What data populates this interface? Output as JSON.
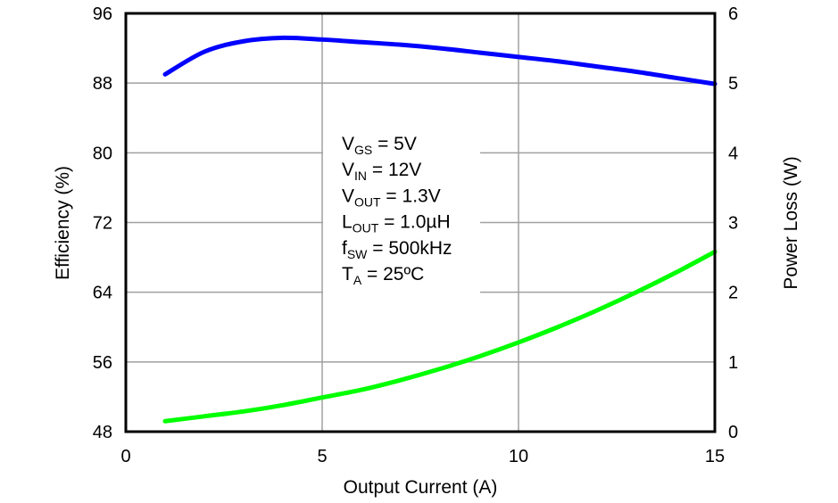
{
  "chart_data": {
    "type": "line",
    "xlabel": "Output Current (A)",
    "ylabel": "Efficiency (%)",
    "y2label": "Power Loss (W)",
    "xlim": [
      0,
      15
    ],
    "ylim": [
      48,
      96
    ],
    "y2lim": [
      0,
      6
    ],
    "xticks": [
      "0",
      "5",
      "10",
      "15"
    ],
    "yticks": [
      "48",
      "56",
      "64",
      "72",
      "80",
      "88",
      "96"
    ],
    "y2ticks": [
      "0",
      "1",
      "2",
      "3",
      "4",
      "5",
      "6"
    ],
    "grid": true,
    "colors": {
      "efficiency": "#0000ff",
      "power_loss": "#00ff00"
    },
    "series": [
      {
        "axis": "left",
        "color": "#0000ff",
        "x": [
          1,
          2,
          3,
          4,
          5,
          6,
          7,
          8,
          9,
          10,
          11,
          12,
          13,
          14,
          15
        ],
        "y": [
          89.0,
          91.6,
          92.8,
          93.2,
          93.0,
          92.7,
          92.4,
          92.0,
          91.5,
          91.0,
          90.5,
          89.9,
          89.3,
          88.6,
          87.9
        ]
      },
      {
        "axis": "right",
        "color": "#00ff00",
        "x": [
          1,
          2,
          3,
          4,
          5,
          6,
          7,
          8,
          9,
          10,
          11,
          12,
          13,
          14,
          15
        ],
        "y": [
          0.15,
          0.22,
          0.29,
          0.38,
          0.49,
          0.6,
          0.74,
          0.9,
          1.08,
          1.28,
          1.5,
          1.74,
          2.0,
          2.28,
          2.58
        ]
      }
    ],
    "annotation": [
      {
        "main": "V",
        "sub": "GS",
        "rest": " = 5V"
      },
      {
        "main": "V",
        "sub": "IN",
        "rest": " = 12V"
      },
      {
        "main": "V",
        "sub": "OUT",
        "rest": " = 1.3V"
      },
      {
        "main": "L",
        "sub": "OUT",
        "rest": " = 1.0µH"
      },
      {
        "main": "f",
        "sub": "SW",
        "rest": " = 500kHz"
      },
      {
        "main": "T",
        "sub": "A",
        "rest": " = 25ºC"
      }
    ]
  }
}
